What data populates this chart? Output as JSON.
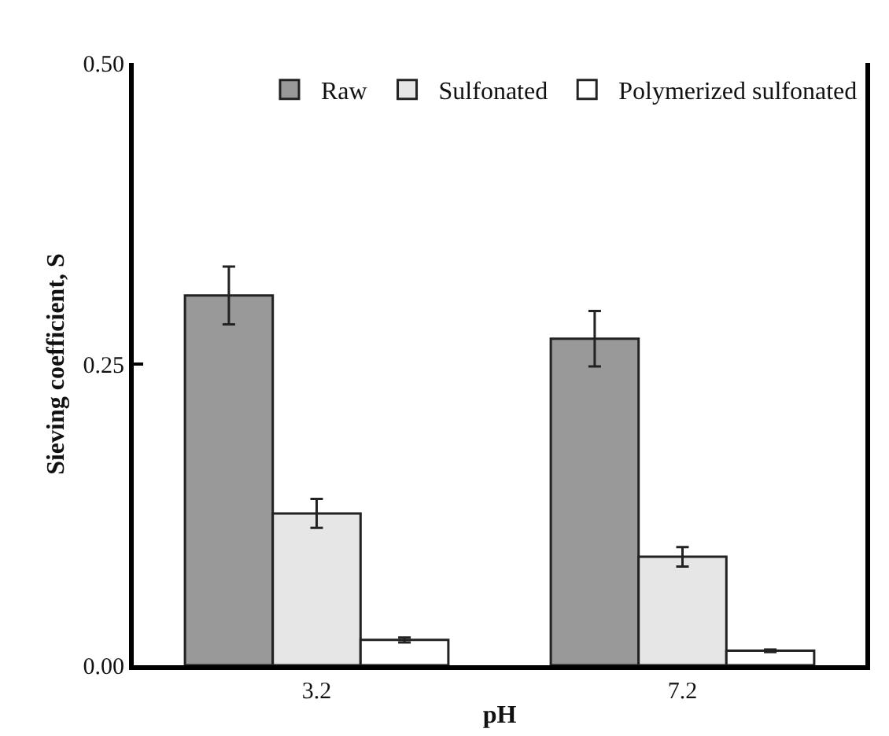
{
  "chart_data": {
    "type": "bar",
    "xlabel": "pH",
    "ylabel": "Sieving coefficient, S",
    "categories": [
      "3.2",
      "7.2"
    ],
    "series": [
      {
        "name": "Raw",
        "color": "#999999",
        "values": [
          0.307,
          0.271
        ],
        "errors": [
          0.024,
          0.023
        ]
      },
      {
        "name": "Sulfonated",
        "color": "#e6e6e6",
        "values": [
          0.126,
          0.09
        ],
        "errors": [
          0.012,
          0.008
        ]
      },
      {
        "name": "Polymerized sulfonated",
        "color": "#ffffff",
        "values": [
          0.021,
          0.012
        ],
        "errors": [
          0.002,
          0.001
        ]
      }
    ],
    "ylim": [
      0,
      0.5
    ],
    "yticks": [
      {
        "value": 0,
        "label": "0.00"
      },
      {
        "value": 0.25,
        "label": "0.25"
      },
      {
        "value": 0.5,
        "label": "0.50"
      }
    ],
    "grid": false,
    "legend": "top right"
  }
}
